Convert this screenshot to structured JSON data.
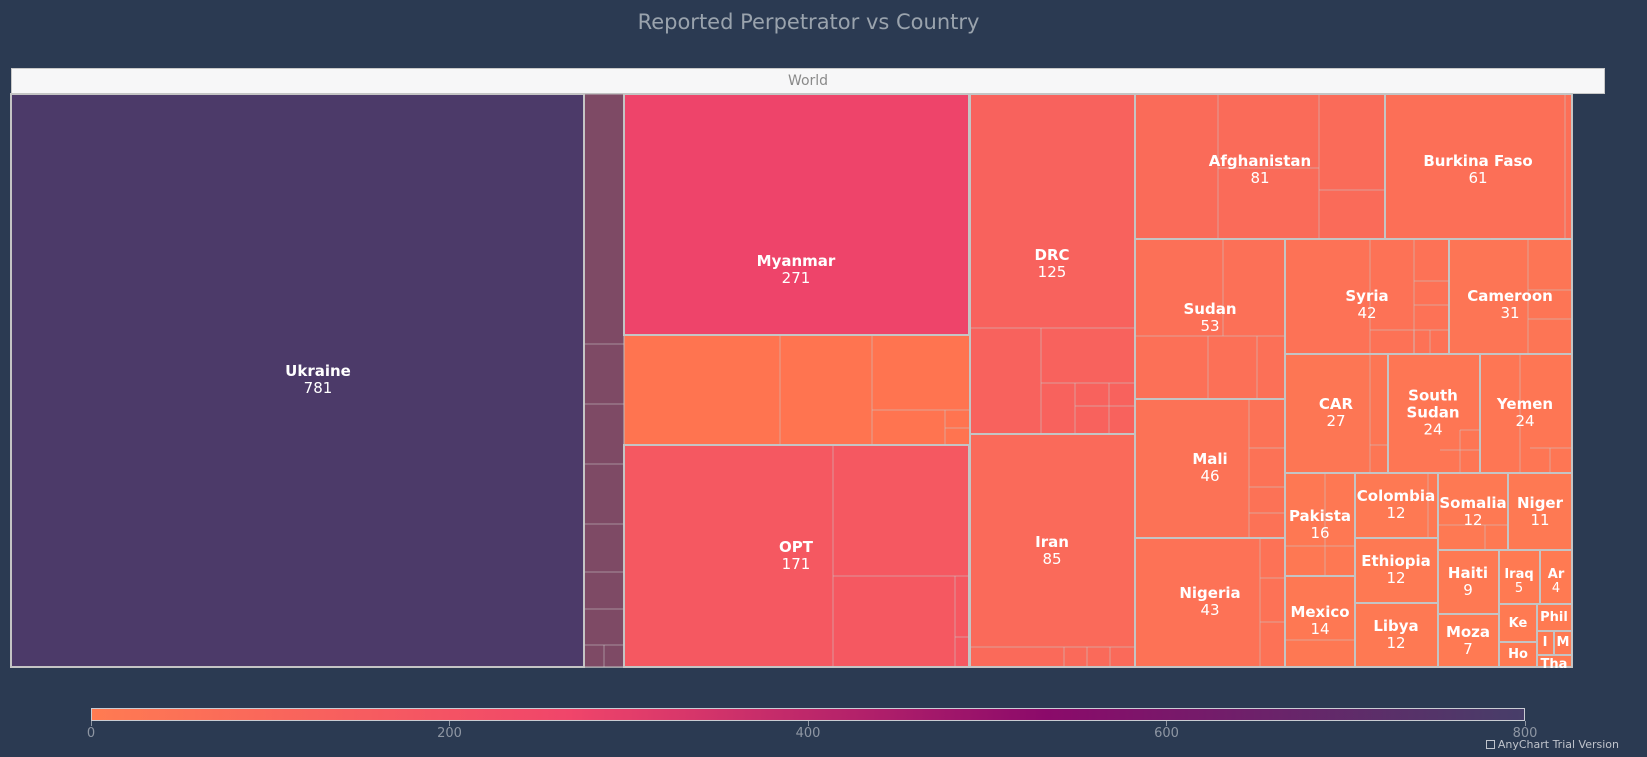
{
  "chart_data": {
    "type": "treemap",
    "title": "Reported Perpetrator vs Country",
    "root": "World",
    "color_scale": {
      "min": 0,
      "max": 800,
      "ticks": [
        0,
        200,
        400,
        600,
        800
      ],
      "colors": [
        "#ff7b52",
        "#f0456a",
        "#8b0a6a",
        "#473e69"
      ]
    },
    "items": [
      {
        "name": "Ukraine",
        "value": 781
      },
      {
        "name": "Myanmar",
        "value": 271
      },
      {
        "name": "OPT",
        "value": 171
      },
      {
        "name": "DRC",
        "value": 125
      },
      {
        "name": "Iran",
        "value": 85
      },
      {
        "name": "Afghanistan",
        "value": 81
      },
      {
        "name": "Burkina Faso",
        "value": 61
      },
      {
        "name": "Sudan",
        "value": 53
      },
      {
        "name": "Mali",
        "value": 46
      },
      {
        "name": "Nigeria",
        "value": 43
      },
      {
        "name": "Syria",
        "value": 42
      },
      {
        "name": "Cameroon",
        "value": 31
      },
      {
        "name": "CAR",
        "value": 27
      },
      {
        "name": "South Sudan",
        "value": 24
      },
      {
        "name": "Yemen",
        "value": 24
      },
      {
        "name": "Pakista",
        "value": 16
      },
      {
        "name": "Colombia",
        "value": 12
      },
      {
        "name": "Somalia",
        "value": 12
      },
      {
        "name": "Niger",
        "value": 11
      },
      {
        "name": "Mexico",
        "value": 14
      },
      {
        "name": "Ethiopia",
        "value": 12
      },
      {
        "name": "Haiti",
        "value": 9
      },
      {
        "name": "Iraq",
        "value": 5
      },
      {
        "name": "Ar",
        "value": 4
      },
      {
        "name": "Libya",
        "value": 12
      },
      {
        "name": "Moza",
        "value": 7
      },
      {
        "name": "Ke",
        "value": null
      },
      {
        "name": "Phil",
        "value": null
      },
      {
        "name": "I",
        "value": null
      },
      {
        "name": "M",
        "value": null
      },
      {
        "name": "Ho",
        "value": null
      },
      {
        "name": "Tha",
        "value": null
      }
    ]
  },
  "credits": "AnyChart Trial Version"
}
